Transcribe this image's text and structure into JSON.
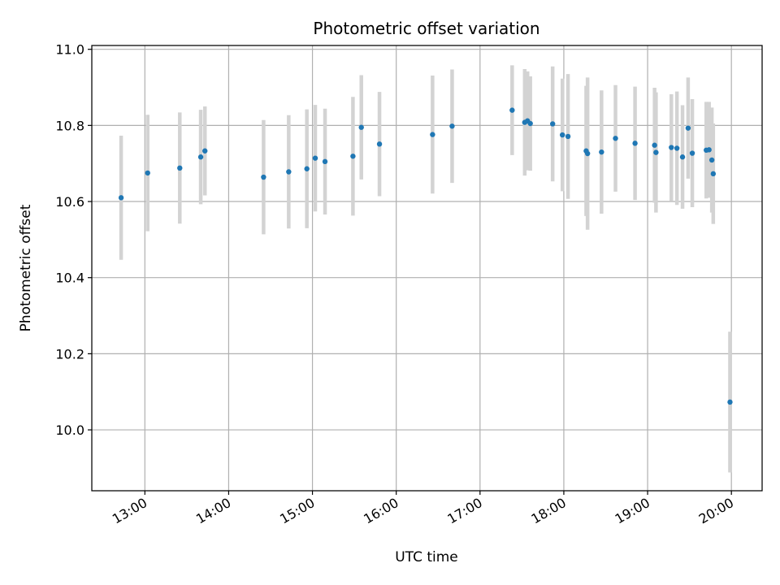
{
  "chart_data": {
    "type": "scatter",
    "title": "Photometric offset variation",
    "xlabel": "UTC time",
    "ylabel": "Photometric offset",
    "x_unit": "UTC time (HH:MM)",
    "xlim": [
      "12:22",
      "20:22"
    ],
    "ylim": [
      9.84,
      11.01
    ],
    "x_ticks": [
      "13:00",
      "14:00",
      "15:00",
      "16:00",
      "17:00",
      "18:00",
      "19:00",
      "20:00"
    ],
    "y_ticks": [
      10.0,
      10.2,
      10.4,
      10.6,
      10.8,
      11.0
    ],
    "y_tick_labels": [
      "10.0",
      "10.2",
      "10.4",
      "10.6",
      "10.8",
      "11.0"
    ],
    "grid": true,
    "marker_color": "#1f77b4",
    "errorbar_color": "#d3d3d3",
    "points": [
      {
        "x": "12:43",
        "y": 10.61,
        "err": 0.163
      },
      {
        "x": "13:02",
        "y": 10.675,
        "err": 0.153
      },
      {
        "x": "13:25",
        "y": 10.688,
        "err": 0.146
      },
      {
        "x": "13:40",
        "y": 10.717,
        "err": 0.124
      },
      {
        "x": "13:43",
        "y": 10.733,
        "err": 0.117
      },
      {
        "x": "14:25",
        "y": 10.664,
        "err": 0.15
      },
      {
        "x": "14:43",
        "y": 10.678,
        "err": 0.149
      },
      {
        "x": "14:56",
        "y": 10.686,
        "err": 0.156
      },
      {
        "x": "15:02",
        "y": 10.714,
        "err": 0.14
      },
      {
        "x": "15:09",
        "y": 10.705,
        "err": 0.139
      },
      {
        "x": "15:29",
        "y": 10.719,
        "err": 0.156
      },
      {
        "x": "15:35",
        "y": 10.795,
        "err": 0.137
      },
      {
        "x": "15:48",
        "y": 10.751,
        "err": 0.137
      },
      {
        "x": "16:26",
        "y": 10.776,
        "err": 0.155
      },
      {
        "x": "16:40",
        "y": 10.798,
        "err": 0.149
      },
      {
        "x": "17:23",
        "y": 10.84,
        "err": 0.118
      },
      {
        "x": "17:32",
        "y": 10.808,
        "err": 0.14
      },
      {
        "x": "17:34",
        "y": 10.812,
        "err": 0.13
      },
      {
        "x": "17:36",
        "y": 10.805,
        "err": 0.124
      },
      {
        "x": "17:52",
        "y": 10.804,
        "err": 0.151
      },
      {
        "x": "17:59",
        "y": 10.775,
        "err": 0.148
      },
      {
        "x": "18:03",
        "y": 10.771,
        "err": 0.164
      },
      {
        "x": "18:16",
        "y": 10.733,
        "err": 0.171
      },
      {
        "x": "18:17",
        "y": 10.726,
        "err": 0.2
      },
      {
        "x": "18:27",
        "y": 10.73,
        "err": 0.162
      },
      {
        "x": "18:37",
        "y": 10.766,
        "err": 0.14
      },
      {
        "x": "18:51",
        "y": 10.753,
        "err": 0.149
      },
      {
        "x": "19:05",
        "y": 10.748,
        "err": 0.151
      },
      {
        "x": "19:06",
        "y": 10.729,
        "err": 0.158
      },
      {
        "x": "19:17",
        "y": 10.742,
        "err": 0.14
      },
      {
        "x": "19:21",
        "y": 10.74,
        "err": 0.149
      },
      {
        "x": "19:25",
        "y": 10.717,
        "err": 0.136
      },
      {
        "x": "19:29",
        "y": 10.793,
        "err": 0.133
      },
      {
        "x": "19:32",
        "y": 10.727,
        "err": 0.142
      },
      {
        "x": "19:42",
        "y": 10.735,
        "err": 0.127
      },
      {
        "x": "19:44",
        "y": 10.736,
        "err": 0.126
      },
      {
        "x": "19:46",
        "y": 10.709,
        "err": 0.138
      },
      {
        "x": "19:47",
        "y": 10.673,
        "err": 0.132
      },
      {
        "x": "19:59",
        "y": 10.073,
        "err": 0.185
      }
    ]
  }
}
